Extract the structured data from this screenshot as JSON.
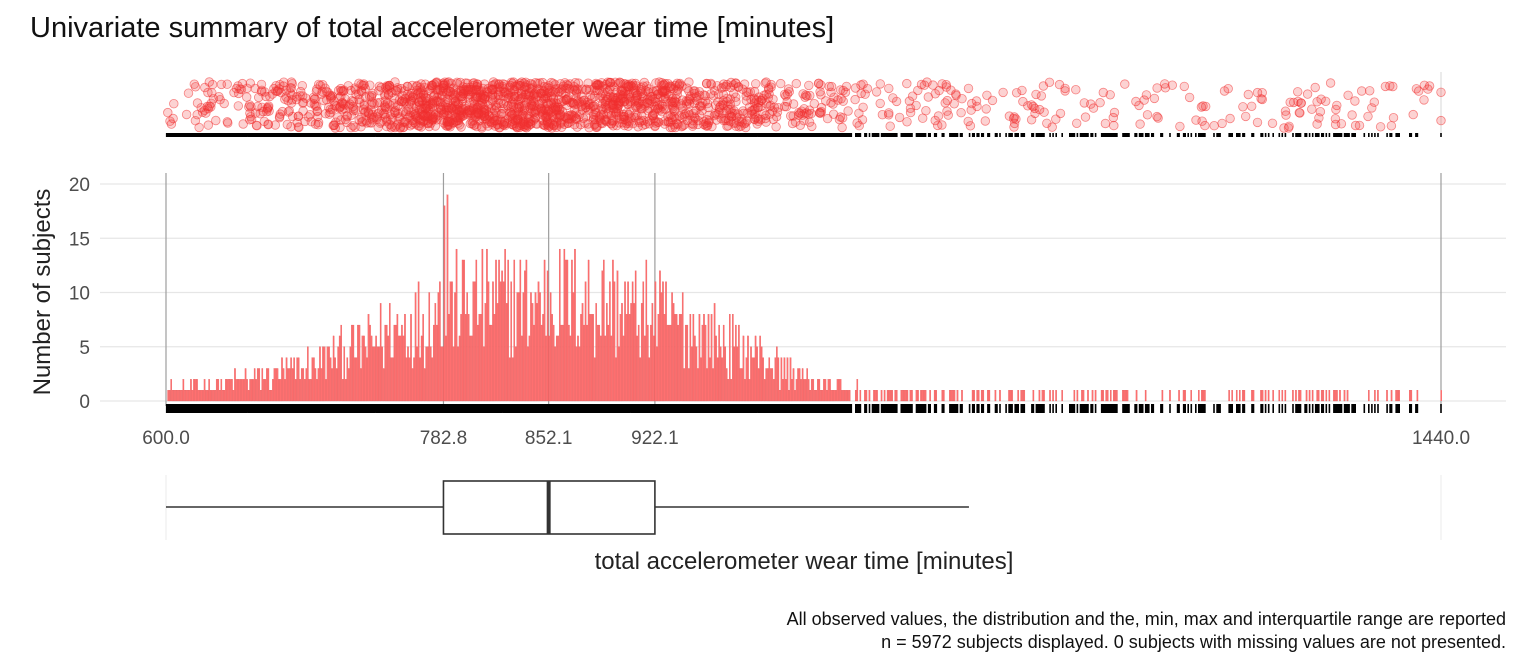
{
  "title": "Univariate summary of total accelerometer wear time [minutes]",
  "captions": [
    "All observed values, the distribution and the, min, max and interquartile range are reported",
    "n = 5972 subjects displayed. 0 subjects with missing values are not presented."
  ],
  "colors": {
    "points": "#f03030",
    "bars": "#ff7070",
    "rug": "#000000",
    "grid": "#e6e6e6",
    "refline": "#9e9e9e",
    "box": "#333333"
  },
  "chart_data": {
    "type": "bar",
    "title": "Univariate summary of total accelerometer wear time [minutes]",
    "xlabel": "total accelerometer wear time [minutes]",
    "ylabel": "Number of subjects",
    "xlim": [
      600,
      1440
    ],
    "ylim": [
      0,
      20
    ],
    "x_ticks": [
      "600.0",
      "782.8",
      "852.1",
      "922.1",
      "1440.0"
    ],
    "x_tick_values": [
      600,
      782.8,
      852.1,
      922.1,
      1440
    ],
    "y_ticks": [
      0,
      5,
      10,
      15,
      20
    ],
    "grid": true,
    "legend": "none",
    "n_subjects": 5972,
    "n_missing": 0,
    "density_profile": {
      "x": [
        600,
        640,
        680,
        700,
        720,
        740,
        760,
        770,
        780,
        800,
        820,
        840,
        860,
        880,
        900,
        920,
        940,
        960,
        980,
        1000,
        1020,
        1040,
        1060,
        1080,
        1100,
        1200,
        1300,
        1400,
        1430
      ],
      "y": [
        1.2,
        2.0,
        3.2,
        4.3,
        5.6,
        7.0,
        8.5,
        9.4,
        10.2,
        10.8,
        11.0,
        11.2,
        11.3,
        11.0,
        10.4,
        9.5,
        8.3,
        7.0,
        5.6,
        4.0,
        2.5,
        1.5,
        1.1,
        0.9,
        0.8,
        0.8,
        0.8,
        0.8,
        0.8
      ]
    },
    "boxplot": {
      "min": 600.0,
      "q1": 782.8,
      "median": 852.1,
      "q3": 922.1,
      "whisker_high": 1129,
      "max": 1440.0
    }
  }
}
